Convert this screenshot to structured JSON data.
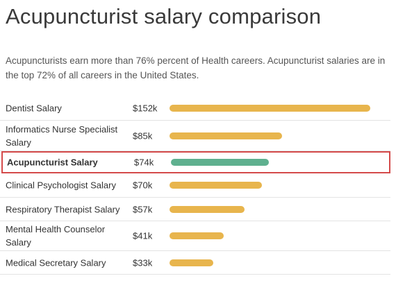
{
  "page": {
    "title": "Acupuncturist salary comparison",
    "description": "Acupuncturists earn more than 76% percent of Health careers. Acupuncturist salaries are in the top 72% of all careers in the United States."
  },
  "colors": {
    "bar_default": "#e8b54d",
    "bar_highlight": "#5fb08f",
    "highlight_border": "#d44a4a"
  },
  "chart_data": {
    "type": "bar",
    "orientation": "horizontal",
    "title": "Acupuncturist salary comparison",
    "categories": [
      "Dentist Salary",
      "Informatics Nurse Specialist Salary",
      "Acupuncturist Salary",
      "Clinical Psychologist Salary",
      "Respiratory Therapist Salary",
      "Mental Health Counselor Salary",
      "Medical Secretary Salary"
    ],
    "value_labels": [
      "$152k",
      "$85k",
      "$74k",
      "$70k",
      "$57k",
      "$41k",
      "$33k"
    ],
    "values": [
      152,
      85,
      74,
      70,
      57,
      41,
      33
    ],
    "highlighted_index": 2,
    "grid": false
  }
}
